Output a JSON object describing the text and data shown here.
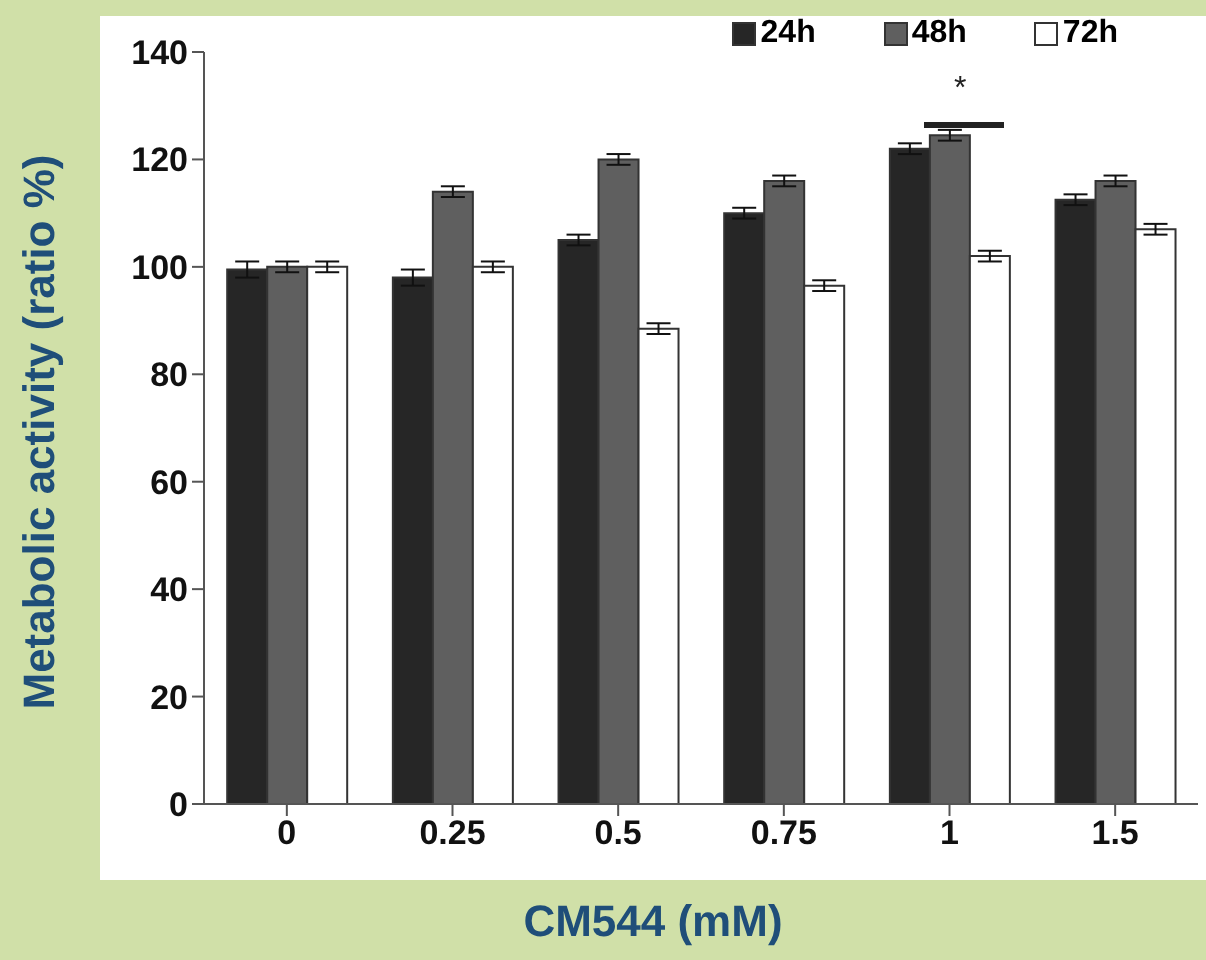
{
  "chart_data": {
    "type": "bar",
    "xlabel": "CM544 (mM)",
    "ylabel": "Metabolic activity (ratio %)",
    "categories": [
      "0",
      "0.25",
      "0.5",
      "0.75",
      "1",
      "1.5"
    ],
    "series": [
      {
        "name": "24h",
        "color": "#262626",
        "values": [
          99.5,
          98,
          105,
          110,
          122,
          112.5
        ],
        "errors": [
          1.5,
          1.5,
          1,
          1,
          1,
          1
        ]
      },
      {
        "name": "48h",
        "color": "#5f5f5f",
        "values": [
          100,
          114,
          120,
          116,
          124.5,
          116
        ],
        "errors": [
          1,
          1,
          1,
          1,
          1,
          1
        ]
      },
      {
        "name": "72h",
        "color": "#ffffff",
        "values": [
          100,
          100,
          88.5,
          96.5,
          102,
          107
        ],
        "errors": [
          1,
          1,
          1,
          1,
          1,
          1
        ]
      }
    ],
    "ylim": [
      0,
      140
    ],
    "yticks": [
      0,
      20,
      40,
      60,
      80,
      100,
      120,
      140
    ],
    "grid": false,
    "legend": "top right",
    "annotations": [
      "*"
    ]
  }
}
